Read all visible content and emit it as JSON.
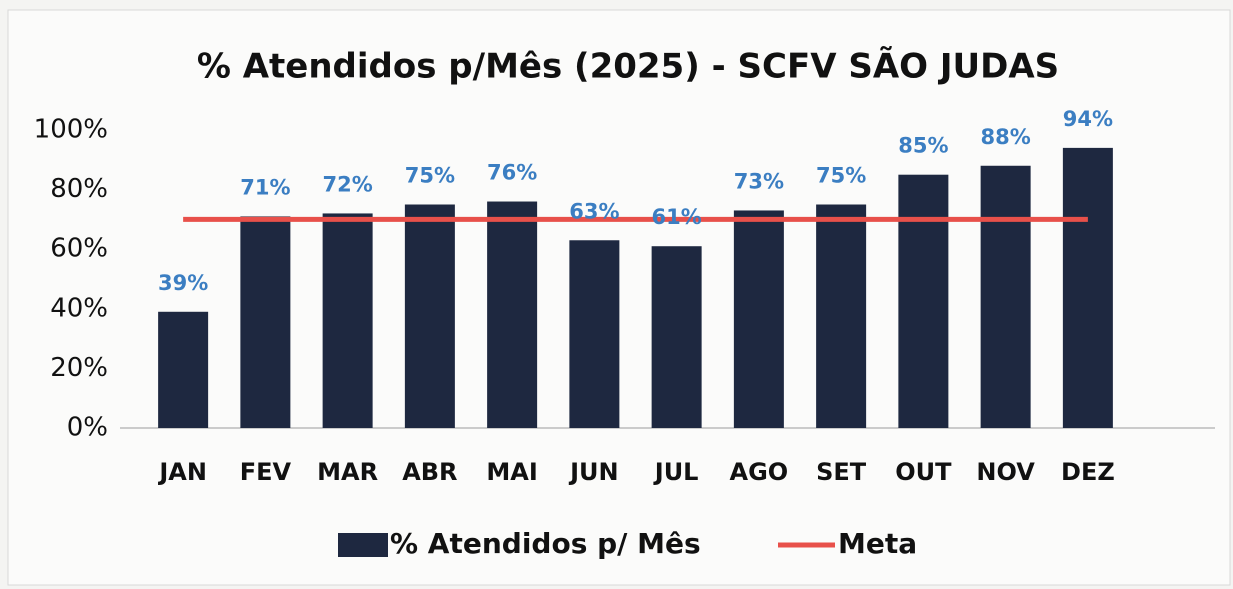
{
  "chart_data": {
    "type": "bar",
    "title": "% Atendidos p/Mês (2025) - SCFV SÃO JUDAS",
    "categories": [
      "JAN",
      "FEV",
      "MAR",
      "ABR",
      "MAI",
      "JUN",
      "JUL",
      "AGO",
      "SET",
      "OUT",
      "NOV",
      "DEZ"
    ],
    "series": [
      {
        "name": "% Atendidos p/ Mês",
        "type": "bar",
        "color": "#1e2840",
        "values": [
          39,
          71,
          72,
          75,
          76,
          63,
          61,
          73,
          75,
          85,
          88,
          94
        ],
        "value_labels": [
          "39%",
          "71%",
          "72%",
          "75%",
          "76%",
          "63%",
          "61%",
          "73%",
          "75%",
          "85%",
          "88%",
          "94%"
        ],
        "label_color": "#3b7ec2"
      },
      {
        "name": "Meta",
        "type": "line",
        "color": "#e8504a",
        "values": [
          70,
          70,
          70,
          70,
          70,
          70,
          70,
          70,
          70,
          70,
          70,
          70
        ]
      }
    ],
    "ylim": [
      0,
      100
    ],
    "yticks": [
      {
        "value": 0,
        "label": "0%"
      },
      {
        "value": 20,
        "label": "20%"
      },
      {
        "value": 40,
        "label": "40%"
      },
      {
        "value": 60,
        "label": "60%"
      },
      {
        "value": 80,
        "label": "80%"
      },
      {
        "value": 100,
        "label": "100%"
      }
    ],
    "grid": false,
    "legend": "bottom"
  }
}
